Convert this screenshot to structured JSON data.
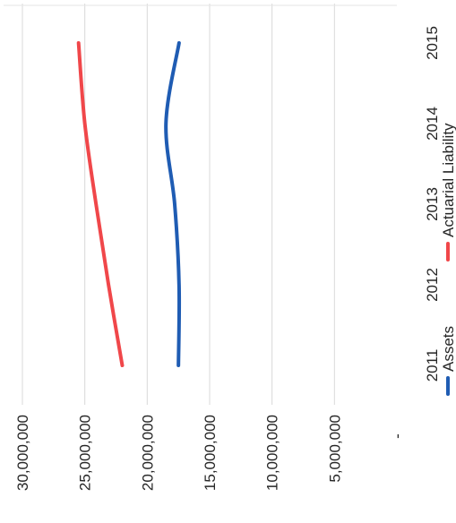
{
  "chart_data": {
    "type": "line",
    "orientation": "rotated-90-clockwise",
    "categories": [
      "2011",
      "2012",
      "2013",
      "2014",
      "2015"
    ],
    "series": [
      {
        "name": "Assets",
        "color": "#1f5cb3",
        "values": [
          17500000,
          17450000,
          17800000,
          18500000,
          17450000
        ]
      },
      {
        "name": "Actuarial Liability",
        "color": "#f0474a",
        "values": [
          22000000,
          23100000,
          24100000,
          25000000,
          25500000
        ]
      }
    ],
    "yticks": [
      "30,000,000",
      "25,000,000",
      "20,000,000",
      "15,000,000",
      "10,000,000",
      "5,000,000",
      "-"
    ],
    "ytick_values": [
      30000000,
      25000000,
      20000000,
      15000000,
      10000000,
      5000000,
      0
    ],
    "ylim": [
      0,
      30000000
    ],
    "grid": true,
    "legend_position": "bottom",
    "title": "",
    "xlabel": "",
    "ylabel": ""
  }
}
